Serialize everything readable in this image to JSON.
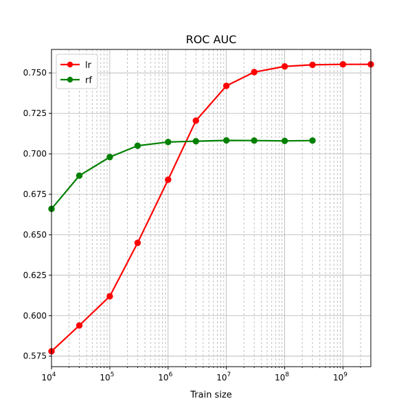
{
  "chart_data": {
    "type": "line",
    "title": "ROC AUC",
    "xlabel": "Train size",
    "ylabel": "",
    "xscale": "log",
    "xlim": [
      10000,
      3000000000
    ],
    "ylim": [
      0.5685,
      0.7645
    ],
    "x_ticks": [
      {
        "value": 10000,
        "mantissa": "10",
        "exponent": "4"
      },
      {
        "value": 100000,
        "mantissa": "10",
        "exponent": "5"
      },
      {
        "value": 1000000,
        "mantissa": "10",
        "exponent": "6"
      },
      {
        "value": 10000000,
        "mantissa": "10",
        "exponent": "7"
      },
      {
        "value": 100000000,
        "mantissa": "10",
        "exponent": "8"
      },
      {
        "value": 1000000000,
        "mantissa": "10",
        "exponent": "9"
      }
    ],
    "y_ticks": [
      {
        "value": 0.575,
        "label": "0.575"
      },
      {
        "value": 0.6,
        "label": "0.600"
      },
      {
        "value": 0.625,
        "label": "0.625"
      },
      {
        "value": 0.65,
        "label": "0.650"
      },
      {
        "value": 0.675,
        "label": "0.675"
      },
      {
        "value": 0.7,
        "label": "0.700"
      },
      {
        "value": 0.725,
        "label": "0.725"
      },
      {
        "value": 0.75,
        "label": "0.750"
      }
    ],
    "grid": true,
    "minor_grid": true,
    "legend_position": "top-left",
    "series": [
      {
        "name": "lr",
        "color": "#ff0000",
        "x": [
          10000,
          30000,
          100000,
          300000,
          1000000,
          3000000,
          10000000,
          30000000,
          100000000,
          300000000,
          1000000000,
          3000000000
        ],
        "y": [
          0.578,
          0.594,
          0.612,
          0.645,
          0.684,
          0.7205,
          0.742,
          0.7505,
          0.754,
          0.755,
          0.7553,
          0.7553
        ]
      },
      {
        "name": "rf",
        "color": "#008000",
        "x": [
          10000,
          30000,
          100000,
          300000,
          1000000,
          3000000,
          10000000,
          30000000,
          100000000,
          300000000
        ],
        "y": [
          0.666,
          0.6865,
          0.698,
          0.705,
          0.7073,
          0.7078,
          0.7083,
          0.7082,
          0.708,
          0.7082
        ]
      }
    ]
  }
}
